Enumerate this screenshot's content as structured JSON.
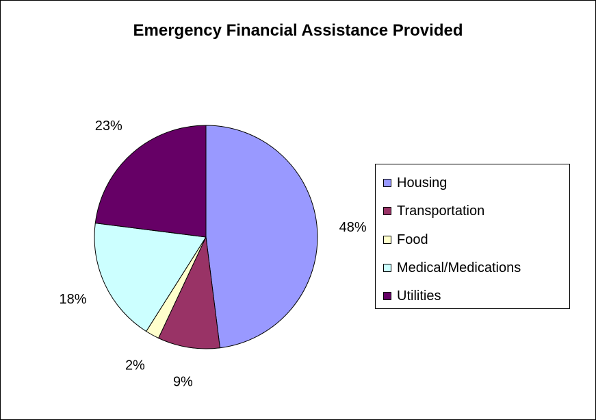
{
  "chart_data": {
    "type": "pie",
    "title": "Emergency Financial Assistance Provided",
    "categories": [
      "Housing",
      "Transportation",
      "Food",
      "Medical/Medications",
      "Utilities"
    ],
    "values": [
      48,
      9,
      2,
      18,
      23
    ],
    "data_labels": [
      "48%",
      "9%",
      "2%",
      "18%",
      "23%"
    ],
    "colors": [
      "#9999ff",
      "#993366",
      "#ffffcc",
      "#ccffff",
      "#660066"
    ],
    "start": "12 o'clock",
    "direction": "clockwise",
    "legend_position": "right"
  }
}
